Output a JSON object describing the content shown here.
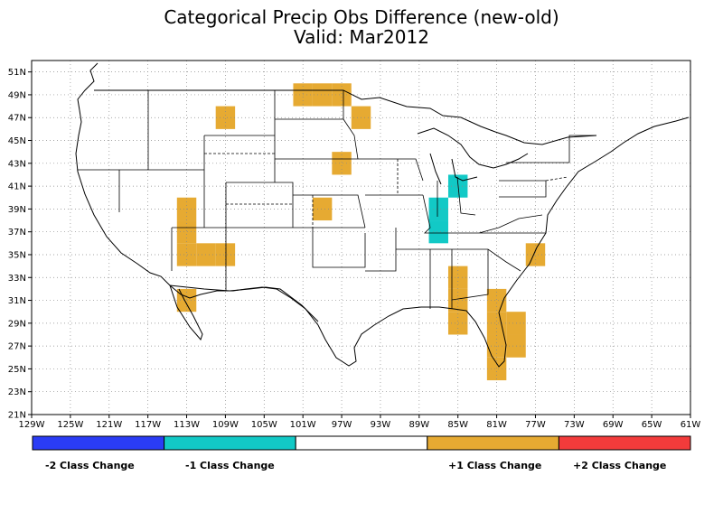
{
  "title_line1": "Categorical Precip Obs Difference (new-old)",
  "title_line2": "Valid: Mar2012",
  "map": {
    "lon_ticks": [
      "129W",
      "125W",
      "121W",
      "117W",
      "113W",
      "109W",
      "105W",
      "101W",
      "97W",
      "93W",
      "89W",
      "85W",
      "81W",
      "77W",
      "73W",
      "69W",
      "65W",
      "61W"
    ],
    "lat_ticks": [
      "51N",
      "49N",
      "47N",
      "45N",
      "43N",
      "41N",
      "39N",
      "37N",
      "35N",
      "33N",
      "31N",
      "29N",
      "27N",
      "25N",
      "23N",
      "21N"
    ],
    "lon_range": [
      -129,
      -61
    ],
    "lat_range": [
      21,
      52
    ],
    "grid": "dotted",
    "cells": [
      {
        "lon": -113,
        "lat": 39,
        "cls": 1
      },
      {
        "lon": -113,
        "lat": 37,
        "cls": 1
      },
      {
        "lon": -113,
        "lat": 35,
        "cls": 1
      },
      {
        "lon": -111,
        "lat": 35,
        "cls": 1
      },
      {
        "lon": -109,
        "lat": 35,
        "cls": 1
      },
      {
        "lon": -113,
        "lat": 31,
        "cls": 1
      },
      {
        "lon": -109,
        "lat": 47,
        "cls": 1
      },
      {
        "lon": -101,
        "lat": 49,
        "cls": 1
      },
      {
        "lon": -99,
        "lat": 49,
        "cls": 1
      },
      {
        "lon": -97,
        "lat": 49,
        "cls": 1
      },
      {
        "lon": -95,
        "lat": 47,
        "cls": 1
      },
      {
        "lon": -97,
        "lat": 43,
        "cls": 1
      },
      {
        "lon": -99,
        "lat": 39,
        "cls": 1
      },
      {
        "lon": -85,
        "lat": 33,
        "cls": 1
      },
      {
        "lon": -85,
        "lat": 31,
        "cls": 1
      },
      {
        "lon": -85,
        "lat": 29,
        "cls": 1
      },
      {
        "lon": -81,
        "lat": 31,
        "cls": 1
      },
      {
        "lon": -81,
        "lat": 29,
        "cls": 1
      },
      {
        "lon": -79,
        "lat": 29,
        "cls": 1
      },
      {
        "lon": -79,
        "lat": 27,
        "cls": 1
      },
      {
        "lon": -81,
        "lat": 27,
        "cls": 1
      },
      {
        "lon": -81,
        "lat": 25,
        "cls": 1
      },
      {
        "lon": -77,
        "lat": 35,
        "cls": 1
      },
      {
        "lon": -87,
        "lat": 39,
        "cls": -1
      },
      {
        "lon": -87,
        "lat": 37,
        "cls": -1
      },
      {
        "lon": -85,
        "lat": 41,
        "cls": -1
      }
    ]
  },
  "legend": {
    "bins": [
      {
        "color": "#2a3cf5"
      },
      {
        "color": "#12c9c6"
      },
      {
        "color": "#ffffff"
      },
      {
        "color": "#e6aa32"
      },
      {
        "color": "#f23b3b"
      }
    ],
    "labels": [
      "-2 Class Change",
      "-1 Class Change",
      "+1 Class Change",
      "+2 Class Change"
    ]
  },
  "colors": {
    "plus1": "#e6aa32",
    "minus1": "#12c9c6",
    "plus2": "#f23b3b",
    "minus2": "#2a3cf5"
  }
}
